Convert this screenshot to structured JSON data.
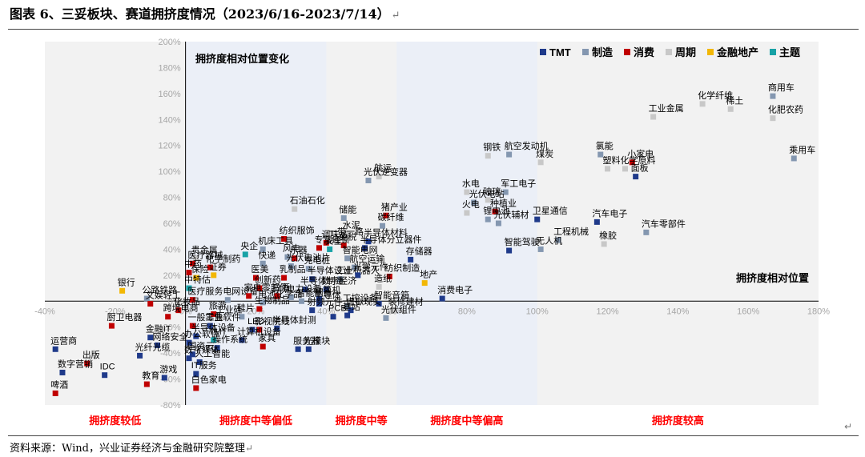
{
  "title": "图表 6、三妥板块、赛道拥挤度情况（2023/6/16-2023/7/14）",
  "source": "资料来源：Wind，兴业证券经济与金融研究院整理",
  "return_glyph": "↵",
  "colors": {
    "TMT": "#1f3a8a",
    "制造": "#8497b0",
    "消费": "#c00000",
    "周期": "#c8c8c8",
    "金融地产": "#f2b705",
    "主题": "#17a2a6",
    "zone": "#ebeff7",
    "axis_label": "#a6a6a6",
    "zone_label": "#ff0000"
  },
  "chart_data": {
    "type": "scatter",
    "x_label": "拥挤度相对位置",
    "y_label": "拥挤度相对位置变化",
    "xlim": [
      -0.4,
      1.8
    ],
    "ylim": [
      -0.8,
      2.0
    ],
    "x_ticks": [
      "-40%",
      "-20%",
      "0%",
      "20%",
      "40%",
      "60%",
      "80%",
      "100%",
      "120%",
      "140%",
      "160%",
      "180%"
    ],
    "y_ticks": [
      "-80%",
      "-60%",
      "-40%",
      "-20%",
      "0%",
      "20%",
      "40%",
      "60%",
      "80%",
      "100%",
      "120%",
      "140%",
      "160%",
      "180%",
      "200%"
    ],
    "legend": [
      "TMT",
      "制造",
      "消费",
      "周期",
      "金融地产",
      "主题"
    ],
    "zones": [
      {
        "label": "拥挤度较低",
        "from": -0.4,
        "to": 0.0
      },
      {
        "label": "拥挤度中等偏低",
        "from": 0.0,
        "to": 0.4
      },
      {
        "label": "拥挤度中等",
        "from": 0.4,
        "to": 0.6
      },
      {
        "label": "拥挤度中等偏高",
        "from": 0.6,
        "to": 1.0
      },
      {
        "label": "拥挤度较高",
        "from": 1.0,
        "to": 1.8
      }
    ],
    "points": [
      {
        "label": "商用车",
        "x": 1.67,
        "y": 1.58,
        "g": "制造"
      },
      {
        "label": "化学纤维",
        "x": 1.47,
        "y": 1.52,
        "g": "周期"
      },
      {
        "label": "稀土",
        "x": 1.55,
        "y": 1.48,
        "g": "周期"
      },
      {
        "label": "工业金属",
        "x": 1.33,
        "y": 1.42,
        "g": "周期"
      },
      {
        "label": "化肥农药",
        "x": 1.67,
        "y": 1.41,
        "g": "周期"
      },
      {
        "label": "乘用车",
        "x": 1.73,
        "y": 1.1,
        "g": "制造"
      },
      {
        "label": "航空发动机",
        "x": 0.92,
        "y": 1.13,
        "g": "制造"
      },
      {
        "label": "钢铁",
        "x": 0.86,
        "y": 1.12,
        "g": "周期"
      },
      {
        "label": "煤炭",
        "x": 1.01,
        "y": 1.07,
        "g": "周期"
      },
      {
        "label": "氯能",
        "x": 1.18,
        "y": 1.13,
        "g": "制造"
      },
      {
        "label": "小家电",
        "x": 1.27,
        "y": 1.07,
        "g": "消费"
      },
      {
        "label": "塑料",
        "x": 1.2,
        "y": 1.02,
        "g": "周期"
      },
      {
        "label": "化学原料",
        "x": 1.25,
        "y": 1.02,
        "g": "周期"
      },
      {
        "label": "面板",
        "x": 1.28,
        "y": 0.96,
        "g": "TMT"
      },
      {
        "label": "航运",
        "x": 0.55,
        "y": 0.96,
        "g": "周期"
      },
      {
        "label": "光伏逆变器",
        "x": 0.52,
        "y": 0.93,
        "g": "制造"
      },
      {
        "label": "水电",
        "x": 0.8,
        "y": 0.84,
        "g": "周期"
      },
      {
        "label": "军工电子",
        "x": 0.91,
        "y": 0.84,
        "g": "制造"
      },
      {
        "label": "玻璃",
        "x": 0.86,
        "y": 0.78,
        "g": "周期"
      },
      {
        "label": "石油石化",
        "x": 0.31,
        "y": 0.71,
        "g": "周期"
      },
      {
        "label": "储能",
        "x": 0.45,
        "y": 0.64,
        "g": "制造"
      },
      {
        "label": "猪产业",
        "x": 0.57,
        "y": 0.66,
        "g": "消费"
      },
      {
        "label": "光伏电站",
        "x": 0.82,
        "y": 0.76,
        "g": "制造"
      },
      {
        "label": "火电",
        "x": 0.8,
        "y": 0.68,
        "g": "周期"
      },
      {
        "label": "种植业",
        "x": 0.88,
        "y": 0.69,
        "g": "消费"
      },
      {
        "label": "卫星通信",
        "x": 1.0,
        "y": 0.63,
        "g": "TMT"
      },
      {
        "label": "锂电池",
        "x": 0.86,
        "y": 0.63,
        "g": "制造"
      },
      {
        "label": "光伏辅材",
        "x": 0.89,
        "y": 0.6,
        "g": "制造"
      },
      {
        "label": "汽车电子",
        "x": 1.17,
        "y": 0.61,
        "g": "TMT"
      },
      {
        "label": "汽车零部件",
        "x": 1.31,
        "y": 0.53,
        "g": "制造"
      },
      {
        "label": "碳纤维",
        "x": 0.56,
        "y": 0.58,
        "g": "制造"
      },
      {
        "label": "工程机械",
        "x": 1.06,
        "y": 0.47,
        "g": "制造"
      },
      {
        "label": "智能驾驶",
        "x": 0.92,
        "y": 0.39,
        "g": "TMT"
      },
      {
        "label": "无人机",
        "x": 1.01,
        "y": 0.4,
        "g": "制造"
      },
      {
        "label": "橡胶",
        "x": 1.19,
        "y": 0.44,
        "g": "周期"
      },
      {
        "label": "水泥",
        "x": 0.46,
        "y": 0.52,
        "g": "周期"
      },
      {
        "label": "纺织服饰",
        "x": 0.28,
        "y": 0.48,
        "g": "消费"
      },
      {
        "label": "一带一路",
        "x": 0.42,
        "y": 0.47,
        "g": "周期"
      },
      {
        "label": "半导体材料",
        "x": 0.52,
        "y": 0.46,
        "g": "TMT"
      },
      {
        "label": "免税",
        "x": 0.45,
        "y": 0.43,
        "g": "消费"
      },
      {
        "label": "调味品",
        "x": 0.4,
        "y": 0.45,
        "g": "消费"
      },
      {
        "label": "贵金属",
        "x": 0.03,
        "y": 0.33,
        "g": "周期"
      },
      {
        "label": "半导体分立器件",
        "x": 0.51,
        "y": 0.41,
        "g": "TMT"
      },
      {
        "label": "专营连锁",
        "x": 0.38,
        "y": 0.41,
        "g": "消费"
      },
      {
        "label": "机床工具",
        "x": 0.22,
        "y": 0.4,
        "g": "制造"
      },
      {
        "label": "安全",
        "x": 0.41,
        "y": 0.4,
        "g": "主题"
      },
      {
        "label": "存储器",
        "x": 0.64,
        "y": 0.32,
        "g": "TMT"
      },
      {
        "label": "央企",
        "x": 0.17,
        "y": 0.36,
        "g": "主题"
      },
      {
        "label": "风电",
        "x": 0.29,
        "y": 0.34,
        "g": "制造"
      },
      {
        "label": "乐器",
        "x": 0.31,
        "y": 0.33,
        "g": "消费"
      },
      {
        "label": "智能电网",
        "x": 0.46,
        "y": 0.33,
        "g": "制造"
      },
      {
        "label": "医疗器械",
        "x": 0.02,
        "y": 0.29,
        "g": "消费"
      },
      {
        "label": "化学制药",
        "x": 0.07,
        "y": 0.26,
        "g": "消费"
      },
      {
        "label": "快递",
        "x": 0.22,
        "y": 0.29,
        "g": "制造"
      },
      {
        "label": "光伏电池片",
        "x": 0.3,
        "y": 0.27,
        "g": "制造"
      },
      {
        "label": "充电桩",
        "x": 0.35,
        "y": 0.25,
        "g": "制造"
      },
      {
        "label": "航空运输",
        "x": 0.48,
        "y": 0.26,
        "g": "制造"
      },
      {
        "label": "中药",
        "x": 0.01,
        "y": 0.22,
        "g": "消费"
      },
      {
        "label": "保险",
        "x": 0.03,
        "y": 0.18,
        "g": "金融地产"
      },
      {
        "label": "证券",
        "x": 0.08,
        "y": 0.2,
        "g": "金融地产"
      },
      {
        "label": "医美",
        "x": 0.2,
        "y": 0.18,
        "g": "消费"
      },
      {
        "label": "乳制品",
        "x": 0.28,
        "y": 0.18,
        "g": "消费"
      },
      {
        "label": "半导体设计",
        "x": 0.36,
        "y": 0.17,
        "g": "TMT"
      },
      {
        "label": "工业机器人",
        "x": 0.44,
        "y": 0.17,
        "g": "制造"
      },
      {
        "label": "光学元件",
        "x": 0.49,
        "y": 0.2,
        "g": "TMT"
      },
      {
        "label": "纺织制造",
        "x": 0.58,
        "y": 0.19,
        "g": "消费"
      },
      {
        "label": "地产",
        "x": 0.68,
        "y": 0.14,
        "g": "金融地产"
      },
      {
        "label": "银行",
        "x": -0.18,
        "y": 0.08,
        "g": "金融地产"
      },
      {
        "label": "中特估",
        "x": 0.01,
        "y": 0.1,
        "g": "主题"
      },
      {
        "label": "创新药",
        "x": 0.21,
        "y": 0.1,
        "g": "消费"
      },
      {
        "label": "半导体制造",
        "x": 0.34,
        "y": 0.09,
        "g": "TMT"
      },
      {
        "label": "数字经济",
        "x": 0.4,
        "y": 0.09,
        "g": "TMT"
      },
      {
        "label": "造纸",
        "x": 0.55,
        "y": 0.11,
        "g": "周期"
      },
      {
        "label": "公路铁路",
        "x": -0.11,
        "y": 0.02,
        "g": "制造"
      },
      {
        "label": "医疗服务",
        "x": 0.02,
        "y": 0.01,
        "g": "消费"
      },
      {
        "label": "电网设备",
        "x": 0.12,
        "y": 0.01,
        "g": "制造"
      },
      {
        "label": "家电零部件",
        "x": 0.18,
        "y": 0.04,
        "g": "消费"
      },
      {
        "label": "白酒",
        "x": 0.26,
        "y": 0.04,
        "g": "消费"
      },
      {
        "label": "电力设备",
        "x": 0.3,
        "y": 0.03,
        "g": "制造"
      },
      {
        "label": "智能制造",
        "x": 0.33,
        "y": 0.0,
        "g": "制造"
      },
      {
        "label": "计算机",
        "x": 0.38,
        "y": 0.02,
        "g": "TMT"
      },
      {
        "label": "消费电子",
        "x": 0.73,
        "y": 0.02,
        "g": "TMT"
      },
      {
        "label": "文娱轻工",
        "x": -0.1,
        "y": -0.02,
        "g": "消费"
      },
      {
        "label": "电池化学品",
        "x": 0.22,
        "y": -0.01,
        "g": "制造"
      },
      {
        "label": "半导体",
        "x": 0.38,
        "y": -0.02,
        "g": "TMT"
      },
      {
        "label": "工控设备",
        "x": 0.46,
        "y": -0.04,
        "g": "制造"
      },
      {
        "label": "智能音箱",
        "x": 0.55,
        "y": -0.02,
        "g": "TMT"
      },
      {
        "label": "化妆品",
        "x": -0.02,
        "y": -0.07,
        "g": "消费"
      },
      {
        "label": "生物制品",
        "x": 0.21,
        "y": -0.06,
        "g": "消费"
      },
      {
        "label": "射频元件",
        "x": 0.36,
        "y": -0.07,
        "g": "TMT"
      },
      {
        "label": "虚拟现实",
        "x": 0.47,
        "y": -0.07,
        "g": "TMT"
      },
      {
        "label": "装修建材",
        "x": 0.59,
        "y": -0.07,
        "g": "周期"
      },
      {
        "label": "跨境电商",
        "x": -0.05,
        "y": -0.12,
        "g": "消费"
      },
      {
        "label": "旅游",
        "x": 0.08,
        "y": -0.1,
        "g": "消费"
      },
      {
        "label": "工业硅",
        "x": 0.1,
        "y": -0.13,
        "g": "周期"
      },
      {
        "label": "硅片",
        "x": 0.16,
        "y": -0.12,
        "g": "制造"
      },
      {
        "label": "光伏组件",
        "x": 0.57,
        "y": -0.13,
        "g": "制造"
      },
      {
        "label": "一般零售",
        "x": 0.02,
        "y": -0.19,
        "g": "消费"
      },
      {
        "label": "工业软件",
        "x": 0.07,
        "y": -0.19,
        "g": "TMT"
      },
      {
        "label": "PCB",
        "x": 0.42,
        "y": -0.12,
        "g": "TMT"
      },
      {
        "label": "基站",
        "x": 0.46,
        "y": -0.11,
        "g": "TMT"
      },
      {
        "label": "厨卫电器",
        "x": -0.21,
        "y": -0.19,
        "g": "消费"
      },
      {
        "label": "半导体设备",
        "x": 0.03,
        "y": -0.27,
        "g": "TMT"
      },
      {
        "label": "LED",
        "x": 0.19,
        "y": -0.22,
        "g": "TMT"
      },
      {
        "label": "影视院线",
        "x": 0.21,
        "y": -0.22,
        "g": "消费"
      },
      {
        "label": "半导体封测",
        "x": 0.26,
        "y": -0.21,
        "g": "TMT"
      },
      {
        "label": "金融IT",
        "x": -0.1,
        "y": -0.28,
        "g": "TMT"
      },
      {
        "label": "网络安全",
        "x": -0.08,
        "y": -0.34,
        "g": "TMT"
      },
      {
        "label": "办公软件",
        "x": 0.01,
        "y": -0.32,
        "g": "TMT"
      },
      {
        "label": "TMT",
        "x": 0.08,
        "y": -0.3,
        "g": "主题"
      },
      {
        "label": "计算机设备",
        "x": 0.16,
        "y": -0.3,
        "g": "TMT"
      },
      {
        "label": "运营商",
        "x": -0.37,
        "y": -0.37,
        "g": "TMT"
      },
      {
        "label": "光纤光缆",
        "x": -0.13,
        "y": -0.42,
        "g": "TMT"
      },
      {
        "label": "国资云",
        "x": 0.02,
        "y": -0.41,
        "g": "TMT"
      },
      {
        "label": "操作系统",
        "x": 0.09,
        "y": -0.36,
        "g": "TMT"
      },
      {
        "label": "家具",
        "x": 0.22,
        "y": -0.35,
        "g": "消费"
      },
      {
        "label": "服务器",
        "x": 0.32,
        "y": -0.37,
        "g": "TMT"
      },
      {
        "label": "光模块",
        "x": 0.35,
        "y": -0.37,
        "g": "TMT"
      },
      {
        "label": "出版",
        "x": -0.28,
        "y": -0.48,
        "g": "消费"
      },
      {
        "label": "数字媒体",
        "x": 0.01,
        "y": -0.44,
        "g": "TMT"
      },
      {
        "label": "人工智能",
        "x": 0.04,
        "y": -0.47,
        "g": "TMT"
      },
      {
        "label": "数字营销",
        "x": -0.35,
        "y": -0.55,
        "g": "TMT"
      },
      {
        "label": "IDC",
        "x": -0.23,
        "y": -0.57,
        "g": "TMT"
      },
      {
        "label": "IT服务",
        "x": 0.03,
        "y": -0.56,
        "g": "TMT"
      },
      {
        "label": "教育",
        "x": -0.11,
        "y": -0.64,
        "g": "消费"
      },
      {
        "label": "游戏",
        "x": -0.06,
        "y": -0.59,
        "g": "TMT"
      },
      {
        "label": "白色家电",
        "x": 0.03,
        "y": -0.67,
        "g": "消费"
      },
      {
        "label": "啤酒",
        "x": -0.37,
        "y": -0.71,
        "g": "消费"
      }
    ]
  }
}
